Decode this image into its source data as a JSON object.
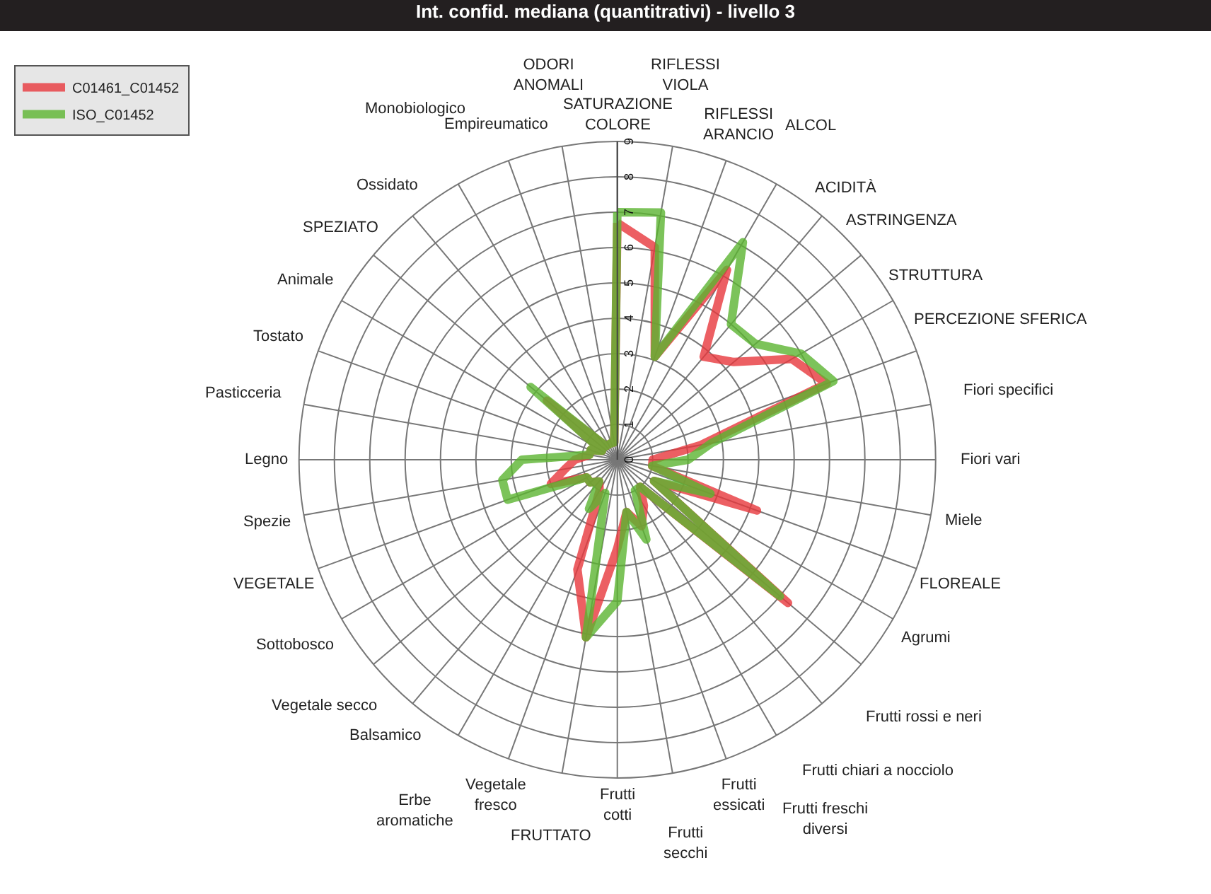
{
  "chart_data": {
    "type": "radar",
    "title": "Int. confid. mediana (quantitrativi) - livello 3",
    "categories": [
      "SATURAZIONE COLORE",
      "RIFLESSI VIOLA",
      "RIFLESSI ARANCIO",
      "ALCOL",
      "ACIDITÀ",
      "ASTRINGENZA",
      "STRUTTURA",
      "PERCEZIONE SFERICA",
      "Fiori specifici",
      "Fiori vari",
      "Miele",
      "FLOREALE",
      "Agrumi",
      "Frutti rossi e neri",
      "Frutti chiari a nocciolo",
      "Frutti freschi diversi",
      "Frutti essicati",
      "Frutti secchi",
      "Frutti cotti",
      "FRUTTATO",
      "Vegetale fresco",
      "Erbe aromatiche",
      "Balsamico",
      "Vegetale secco",
      "Sottobosco",
      "VEGETALE",
      "Spezie",
      "Legno",
      "Pasticceria",
      "Tostato",
      "Animale",
      "SPEZIATO",
      "Ossidato",
      "Monobiologico",
      "Empireumatico",
      "ODORI ANOMALI"
    ],
    "series": [
      {
        "name": "C01461_C01452",
        "color": "#e8383d",
        "values": [
          6.7,
          6.1,
          3.1,
          6.2,
          3.8,
          4.3,
          5.7,
          6.3,
          2.4,
          1.0,
          1.0,
          4.2,
          1.2,
          6.3,
          1.0,
          1.5,
          2.0,
          1.5,
          2.5,
          5.1,
          3.3,
          1.0,
          0.8,
          1.0,
          1.0,
          2.0,
          1.5,
          1.2,
          0.8,
          0.8,
          0.5,
          2.6,
          0.5,
          0.5,
          0.5,
          0.5
        ]
      },
      {
        "name": "ISO_C01452",
        "color": "#5cb531",
        "values": [
          7.0,
          7.1,
          3.1,
          7.1,
          5.0,
          5.1,
          6.0,
          6.5,
          2.7,
          2.0,
          1.0,
          2.8,
          1.2,
          6.0,
          1.0,
          1.0,
          2.4,
          1.5,
          4.0,
          5.1,
          1.0,
          1.6,
          0.8,
          1.0,
          1.0,
          3.3,
          3.3,
          2.7,
          0.8,
          0.8,
          0.5,
          3.2,
          0.5,
          0.5,
          0.5,
          0.5
        ]
      }
    ],
    "ylim": [
      0,
      9
    ],
    "yticks": [
      0,
      1,
      2,
      3,
      4,
      5,
      6,
      7,
      8,
      9
    ],
    "grid": true,
    "legend": "top left",
    "marker": "none",
    "line_style": "solid"
  }
}
